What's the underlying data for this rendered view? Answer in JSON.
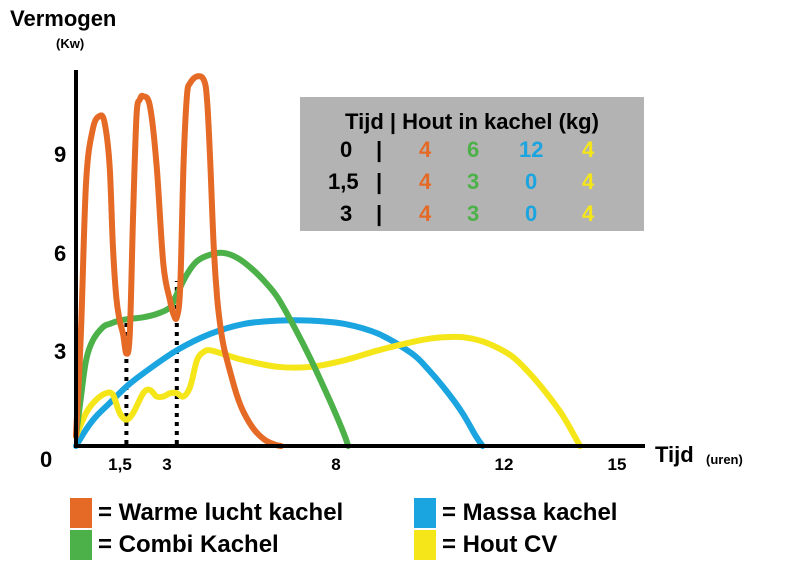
{
  "chart_data": {
    "type": "line",
    "ylabel": "Vermogen",
    "yunit": "(Kw)",
    "xlabel": "Tijd",
    "xunit": "(uren)",
    "xlim": [
      0,
      15.5
    ],
    "ylim": [
      0,
      12
    ],
    "x_ticks": [
      "1,5",
      "3",
      "8",
      "12",
      "15"
    ],
    "x_tick_values": [
      1.5,
      3,
      8,
      12,
      15
    ],
    "x_origin_label": "0",
    "y_ticks": [
      "9",
      "6",
      "3"
    ],
    "y_tick_values": [
      9,
      6,
      3
    ],
    "grid": false,
    "vertical_markers": [
      {
        "x": 1.5,
        "y_top": 3.8
      },
      {
        "x": 3,
        "y_top": 5
      }
    ],
    "series": [
      {
        "name": "Warme lucht kachel",
        "color": "#e56a26",
        "x": [
          0,
          0.15,
          0.3,
          0.5,
          0.7,
          0.85,
          1.0,
          1.1,
          1.2,
          1.3,
          1.4,
          1.5,
          1.6,
          1.7,
          1.8,
          1.9,
          2.0,
          2.2,
          2.4,
          2.6,
          2.8,
          2.9,
          3.0,
          3.1,
          3.2,
          3.3,
          3.4,
          3.6,
          3.8,
          3.9,
          4.0,
          4.1,
          4.2,
          4.3,
          4.4,
          4.6,
          4.8,
          5.0,
          5.3,
          5.6,
          5.9,
          6.1
        ],
        "y": [
          0.3,
          3.5,
          8.0,
          9.6,
          10.0,
          9.8,
          8.5,
          6.0,
          4.5,
          3.8,
          3.4,
          2.8,
          3.4,
          7.0,
          10.0,
          10.5,
          10.6,
          10.3,
          8.5,
          5.5,
          4.4,
          4.0,
          3.9,
          4.8,
          8.5,
          10.6,
          11.0,
          11.2,
          11.1,
          10.5,
          8.5,
          6.0,
          4.5,
          3.6,
          3.0,
          2.2,
          1.5,
          1.0,
          0.5,
          0.2,
          0.05,
          0
        ]
      },
      {
        "name": "Combi Kachel",
        "color": "#4cb148",
        "x": [
          0,
          0.15,
          0.3,
          0.5,
          0.8,
          1.0,
          1.3,
          1.6,
          2.0,
          2.4,
          2.8,
          3.0,
          3.3,
          3.6,
          4.0,
          4.4,
          4.8,
          5.2,
          5.6,
          6.0,
          6.5,
          7.0,
          7.5,
          7.8,
          8.0,
          8.1
        ],
        "y": [
          0.3,
          1.5,
          2.6,
          3.2,
          3.6,
          3.7,
          3.8,
          3.85,
          3.9,
          4.0,
          4.2,
          4.6,
          5.2,
          5.6,
          5.8,
          5.85,
          5.7,
          5.4,
          5.0,
          4.5,
          3.6,
          2.6,
          1.5,
          0.8,
          0.3,
          0
        ]
      },
      {
        "name": "Massa kachel",
        "color": "#1aa5e0",
        "x": [
          0,
          0.3,
          0.6,
          1.0,
          1.5,
          2.0,
          3.0,
          4.0,
          5.0,
          6.0,
          7.0,
          8.0,
          9.0,
          10.0,
          10.5,
          11.0,
          11.5,
          11.9,
          12.1
        ],
        "y": [
          0,
          0.5,
          0.9,
          1.3,
          1.8,
          2.2,
          2.9,
          3.4,
          3.7,
          3.8,
          3.8,
          3.7,
          3.4,
          2.8,
          2.3,
          1.7,
          1.0,
          0.3,
          0
        ]
      },
      {
        "name": "Hout CV",
        "color": "#f5e61a",
        "x": [
          0,
          0.3,
          0.6,
          0.9,
          1.1,
          1.3,
          1.5,
          1.7,
          2.0,
          2.2,
          2.4,
          2.6,
          2.8,
          3.0,
          3.2,
          3.4,
          3.6,
          3.8,
          4.0,
          4.5,
          5.0,
          6.0,
          7.0,
          8.0,
          9.0,
          10.0,
          10.5,
          11.0,
          11.5,
          12.0,
          12.5,
          13.0,
          13.5,
          14.0,
          14.5,
          15.0
        ],
        "y": [
          0.3,
          1.0,
          1.4,
          1.6,
          1.55,
          1.0,
          0.8,
          1.0,
          1.6,
          1.7,
          1.5,
          1.5,
          1.6,
          1.6,
          1.5,
          1.8,
          2.6,
          2.85,
          2.9,
          2.75,
          2.6,
          2.4,
          2.4,
          2.6,
          2.9,
          3.15,
          3.25,
          3.3,
          3.3,
          3.2,
          3.0,
          2.7,
          2.2,
          1.6,
          0.9,
          0
        ]
      }
    ]
  },
  "infobox": {
    "header": "Tijd | Hout in kachel (kg)",
    "rows": [
      {
        "time": "0",
        "sep": "|",
        "values": [
          "4",
          "6",
          "12",
          "4"
        ]
      },
      {
        "time": "1,5",
        "sep": "|",
        "values": [
          "4",
          "3",
          "0",
          "4"
        ]
      },
      {
        "time": "3",
        "sep": "|",
        "values": [
          "4",
          "3",
          "0",
          "4"
        ]
      }
    ],
    "value_colors": [
      "#e56a26",
      "#4cb148",
      "#1aa5e0",
      "#f5e61a"
    ]
  },
  "legend": [
    {
      "label": "= Warme lucht kachel",
      "color": "#e56a26"
    },
    {
      "label": "= Combi Kachel",
      "color": "#4cb148"
    },
    {
      "label": "= Massa kachel",
      "color": "#1aa5e0"
    },
    {
      "label": "= Hout CV",
      "color": "#f5e61a"
    }
  ]
}
